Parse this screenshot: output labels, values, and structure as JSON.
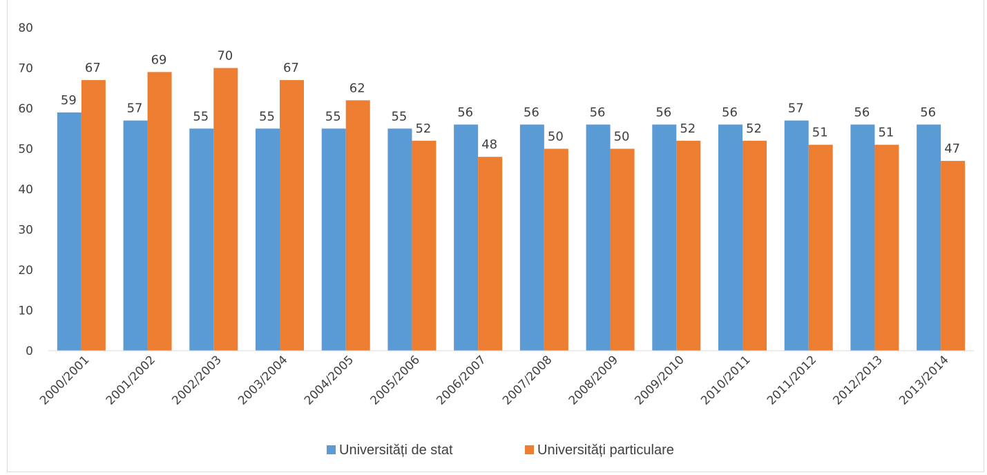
{
  "chart_data": {
    "type": "bar",
    "title": "",
    "xlabel": "",
    "ylabel": "",
    "ylim": [
      0,
      80
    ],
    "yticks": [
      0,
      10,
      20,
      30,
      40,
      50,
      60,
      70,
      80
    ],
    "grid": false,
    "legend_position": "bottom",
    "categories": [
      "2000/2001",
      "2001/2002",
      "2002/2003",
      "2003/2004",
      "2004/2005",
      "2005/2006",
      "2006/2007",
      "2007/2008",
      "2008/2009",
      "2009/2010",
      "2010/2011",
      "2011/2012",
      "2012/2013",
      "2013/2014"
    ],
    "series": [
      {
        "name": "Universități de stat",
        "color": "#5b9bd5",
        "values": [
          59,
          57,
          55,
          55,
          55,
          55,
          56,
          56,
          56,
          56,
          56,
          57,
          56,
          56
        ]
      },
      {
        "name": "Universități particulare",
        "color": "#ed7d31",
        "values": [
          67,
          69,
          70,
          67,
          62,
          52,
          48,
          50,
          50,
          52,
          52,
          51,
          51,
          47
        ]
      }
    ]
  }
}
